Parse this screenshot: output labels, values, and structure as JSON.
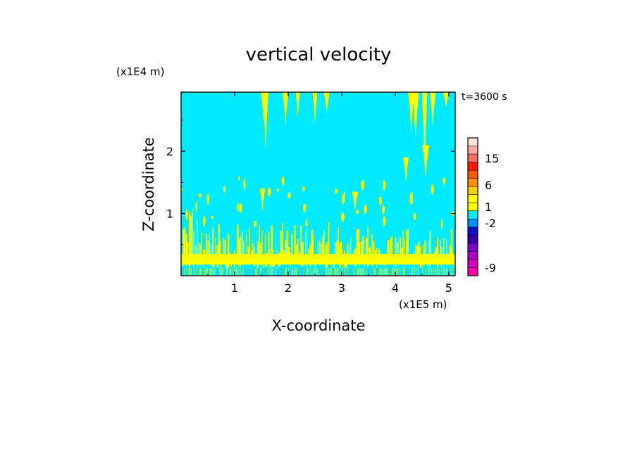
{
  "chart_data": {
    "type": "heatmap",
    "title": "vertical velocity",
    "xlabel": "X-coordinate",
    "ylabel": "Z-coordinate",
    "x_unit_label": "(x1E5 m)",
    "y_unit_label": "(x1E4 m)",
    "time_label": "t=3600 s",
    "xlim": [
      0,
      5.12
    ],
    "ylim": [
      0,
      2.95
    ],
    "x_ticks": [
      1,
      2,
      3,
      4,
      5
    ],
    "x_tick_labels": [
      "1",
      "2",
      "3",
      "4",
      "5"
    ],
    "y_ticks": [
      1,
      2
    ],
    "y_tick_labels": [
      "1",
      "2"
    ],
    "background_color": "#00eaff",
    "plume_color": "#ffff00",
    "colorbar": {
      "levels": [
        {
          "color": "#ff00aa"
        },
        {
          "color": "#d800c0"
        },
        {
          "color": "#aa00c8"
        },
        {
          "color": "#7a00c8"
        },
        {
          "color": "#3c00aa"
        },
        {
          "color": "#1010c0"
        },
        {
          "color": "#0090ff"
        },
        {
          "color": "#00eaff"
        },
        {
          "color": "#ffff00"
        },
        {
          "color": "#ffff00"
        },
        {
          "color": "#ffd000"
        },
        {
          "color": "#ff9000"
        },
        {
          "color": "#ff5a00"
        },
        {
          "color": "#ff1a00"
        },
        {
          "color": "#f07060"
        },
        {
          "color": "#f8a8a0"
        },
        {
          "color": "#fde2dc"
        }
      ],
      "labels": [
        {
          "text": "-9",
          "level": 1
        },
        {
          "text": "-2",
          "level": 6.5
        },
        {
          "text": "1",
          "level": 8.5
        },
        {
          "text": "6",
          "level": 11.2
        },
        {
          "text": "15",
          "level": 14.5
        }
      ]
    },
    "updraft_features": [
      {
        "x": 1.55,
        "z_top": 2.95,
        "z_bot": 2.45
      },
      {
        "x": 1.58,
        "z_top": 2.95,
        "z_bot": 2.0
      },
      {
        "x": 1.95,
        "z_top": 2.95,
        "z_bot": 2.4
      },
      {
        "x": 2.18,
        "z_top": 2.95,
        "z_bot": 2.55
      },
      {
        "x": 2.5,
        "z_top": 2.95,
        "z_bot": 2.45
      },
      {
        "x": 2.72,
        "z_top": 2.95,
        "z_bot": 2.6
      },
      {
        "x": 4.3,
        "z_top": 2.95,
        "z_bot": 2.3
      },
      {
        "x": 4.38,
        "z_top": 2.95,
        "z_bot": 2.2
      },
      {
        "x": 4.55,
        "z_top": 2.95,
        "z_bot": 1.7
      },
      {
        "x": 4.7,
        "z_top": 2.95,
        "z_bot": 2.4
      },
      {
        "x": 4.95,
        "z_top": 2.95,
        "z_bot": 2.7
      },
      {
        "x": 4.2,
        "z_top": 1.9,
        "z_bot": 1.5
      },
      {
        "x": 4.57,
        "z_top": 2.1,
        "z_bot": 1.6
      },
      {
        "x": 3.25,
        "z_top": 1.35,
        "z_bot": 1.05
      },
      {
        "x": 1.52,
        "z_top": 1.4,
        "z_bot": 1.05
      }
    ]
  }
}
